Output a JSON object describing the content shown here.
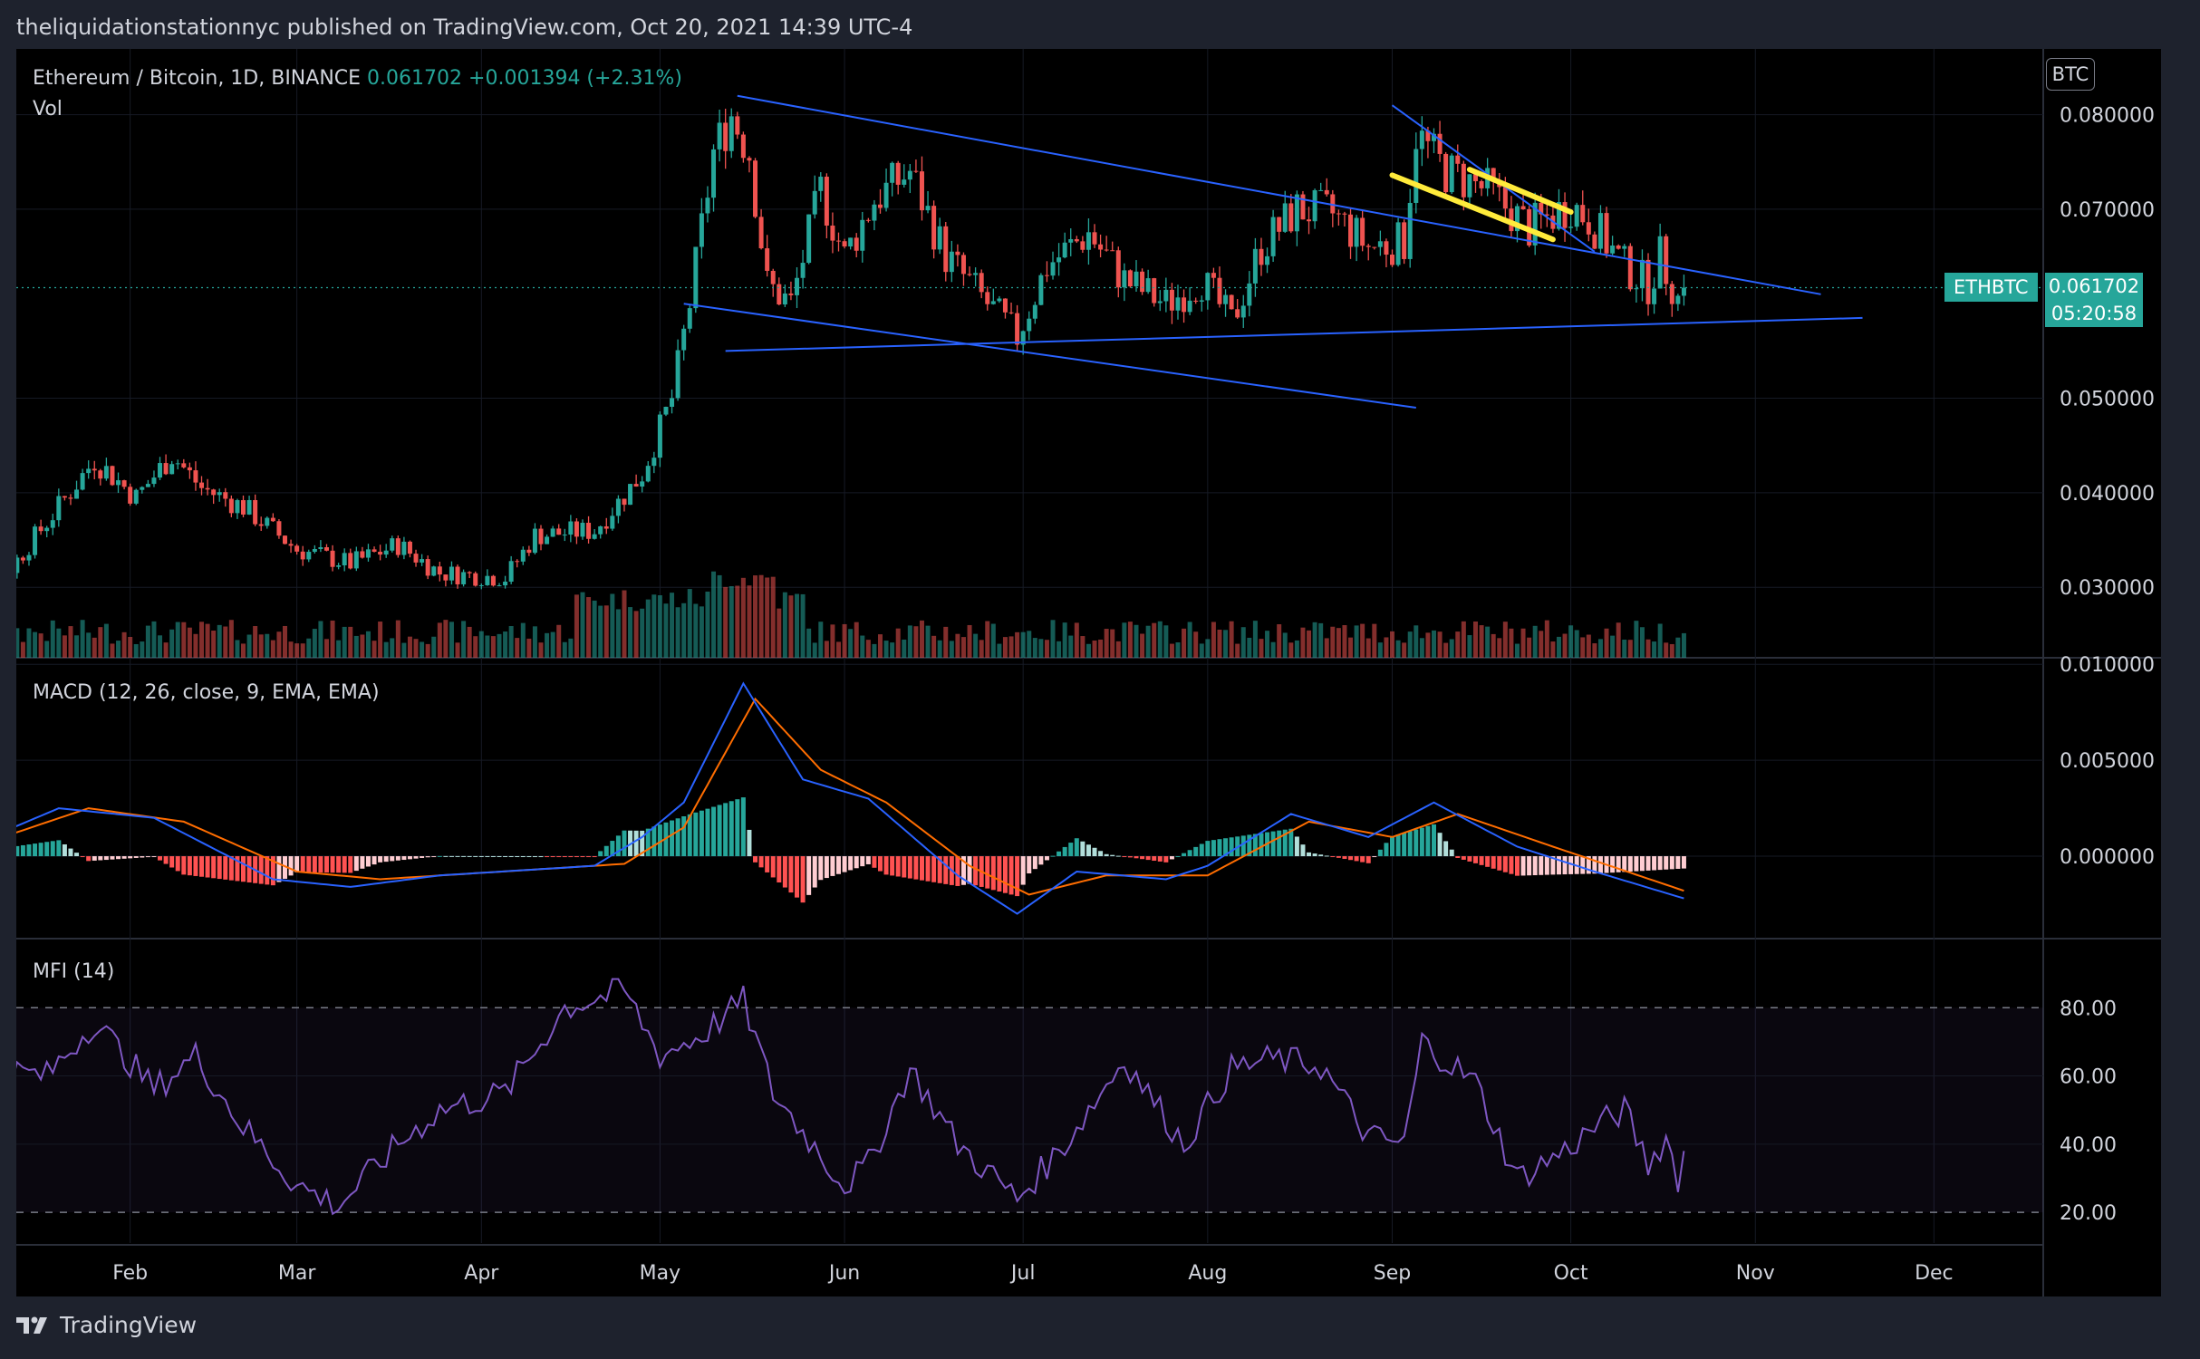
{
  "header": {
    "publisher_line": "theliquidationstationnyc published on TradingView.com, Oct 20, 2021 14:39 UTC-4"
  },
  "legend": {
    "symbol": "Ethereum / Bitcoin, 1D, BINANCE",
    "last": "0.061702",
    "change": "+0.001394 (+2.31%)",
    "vol_label": "Vol"
  },
  "currency_badge": "BTC",
  "ticker_tag": {
    "symbol": "ETHBTC",
    "price": "0.061702",
    "countdown": "05:20:58"
  },
  "macd_label": "MACD (12, 26, close, 9, EMA, EMA)",
  "mfi_label": "MFI (14)",
  "footer": {
    "brand": "TradingView",
    "logo_icon": "tradingview-logo-icon"
  },
  "colors": {
    "up": "#26a69a",
    "down": "#ef5350",
    "macd": "#2962ff",
    "signal": "#ff6d00",
    "mfi": "#7e57c2",
    "trendline": "#2962ff",
    "highlight": "#ffeb3b"
  },
  "chart_data": [
    {
      "type": "candlestick",
      "title": "Ethereum / Bitcoin, 1D, BINANCE",
      "y_ticks": [
        "0.080000",
        "0.070000",
        "0.050000",
        "0.040000",
        "0.030000"
      ],
      "x_ticks": [
        "Feb",
        "Mar",
        "Apr",
        "May",
        "Jun",
        "Jul",
        "Aug",
        "Sep",
        "Oct",
        "Nov",
        "Dec"
      ],
      "ylim": [
        0.0235,
        0.086
      ],
      "last_price": 0.061702,
      "anchors": [
        {
          "date": "2021-01-01",
          "price": 0.0315
        },
        {
          "date": "2021-01-10",
          "price": 0.0305
        },
        {
          "date": "2021-01-20",
          "price": 0.0385
        },
        {
          "date": "2021-01-26",
          "price": 0.0435
        },
        {
          "date": "2021-02-02",
          "price": 0.0395
        },
        {
          "date": "2021-02-08",
          "price": 0.044
        },
        {
          "date": "2021-02-13",
          "price": 0.0405
        },
        {
          "date": "2021-02-20",
          "price": 0.0385
        },
        {
          "date": "2021-03-01",
          "price": 0.034
        },
        {
          "date": "2021-03-10",
          "price": 0.0325
        },
        {
          "date": "2021-03-18",
          "price": 0.0345
        },
        {
          "date": "2021-03-25",
          "price": 0.0315
        },
        {
          "date": "2021-04-05",
          "price": 0.031
        },
        {
          "date": "2021-04-10",
          "price": 0.0355
        },
        {
          "date": "2021-04-20",
          "price": 0.036
        },
        {
          "date": "2021-04-28",
          "price": 0.042
        },
        {
          "date": "2021-05-03",
          "price": 0.05
        },
        {
          "date": "2021-05-06",
          "price": 0.06
        },
        {
          "date": "2021-05-10",
          "price": 0.076
        },
        {
          "date": "2021-05-13",
          "price": 0.08
        },
        {
          "date": "2021-05-16",
          "price": 0.076
        },
        {
          "date": "2021-05-19",
          "price": 0.062
        },
        {
          "date": "2021-05-23",
          "price": 0.06
        },
        {
          "date": "2021-05-28",
          "price": 0.072
        },
        {
          "date": "2021-06-01",
          "price": 0.065
        },
        {
          "date": "2021-06-06",
          "price": 0.071
        },
        {
          "date": "2021-06-12",
          "price": 0.074
        },
        {
          "date": "2021-06-18",
          "price": 0.065
        },
        {
          "date": "2021-06-25",
          "price": 0.06
        },
        {
          "date": "2021-06-30",
          "price": 0.0565
        },
        {
          "date": "2021-07-05",
          "price": 0.064
        },
        {
          "date": "2021-07-12",
          "price": 0.0675
        },
        {
          "date": "2021-07-18",
          "price": 0.0625
        },
        {
          "date": "2021-07-25",
          "price": 0.06
        },
        {
          "date": "2021-07-31",
          "price": 0.0625
        },
        {
          "date": "2021-08-05",
          "price": 0.058
        },
        {
          "date": "2021-08-10",
          "price": 0.066
        },
        {
          "date": "2021-08-16",
          "price": 0.07
        },
        {
          "date": "2021-08-22",
          "price": 0.0695
        },
        {
          "date": "2021-08-28",
          "price": 0.066
        },
        {
          "date": "2021-09-03",
          "price": 0.0665
        },
        {
          "date": "2021-09-05",
          "price": 0.078
        },
        {
          "date": "2021-09-10",
          "price": 0.074
        },
        {
          "date": "2021-09-17",
          "price": 0.072
        },
        {
          "date": "2021-09-24",
          "price": 0.068
        },
        {
          "date": "2021-10-01",
          "price": 0.0705
        },
        {
          "date": "2021-10-04",
          "price": 0.069
        },
        {
          "date": "2021-10-10",
          "price": 0.064
        },
        {
          "date": "2021-10-14",
          "price": 0.062
        },
        {
          "date": "2021-10-16",
          "price": 0.065
        },
        {
          "date": "2021-10-19",
          "price": 0.0605
        },
        {
          "date": "2021-10-20",
          "price": 0.0617
        }
      ],
      "trendlines": [
        {
          "from": {
            "date": "2021-05-14",
            "price": 0.082
          },
          "to": {
            "date": "2021-11-12",
            "price": 0.061
          }
        },
        {
          "from": {
            "date": "2021-05-05",
            "price": 0.06
          },
          "to": {
            "date": "2021-09-05",
            "price": 0.049
          }
        },
        {
          "from": {
            "date": "2021-05-12",
            "price": 0.055
          },
          "to": {
            "date": "2021-11-19",
            "price": 0.0585
          }
        },
        {
          "from": {
            "date": "2021-09-01",
            "price": 0.081
          },
          "to": {
            "date": "2021-10-05",
            "price": 0.0655
          }
        }
      ],
      "highlight_lines": [
        {
          "from": {
            "date": "2021-09-01",
            "price": 0.0736
          },
          "to": {
            "date": "2021-09-28",
            "price": 0.0668
          }
        },
        {
          "from": {
            "date": "2021-09-14",
            "price": 0.0742
          },
          "to": {
            "date": "2021-10-01",
            "price": 0.0697
          }
        }
      ]
    },
    {
      "type": "line",
      "title": "MACD (12, 26, close, 9, EMA, EMA)",
      "y_ticks": [
        "0.010000",
        "0.005000",
        "0.000000"
      ],
      "ylim": [
        -0.0042,
        0.0102
      ],
      "macd_anchors": [
        {
          "date": "2021-01-01",
          "value": 0.0
        },
        {
          "date": "2021-01-20",
          "value": 0.0025
        },
        {
          "date": "2021-02-05",
          "value": 0.002
        },
        {
          "date": "2021-02-25",
          "value": -0.0012
        },
        {
          "date": "2021-03-10",
          "value": -0.0016
        },
        {
          "date": "2021-03-25",
          "value": -0.001
        },
        {
          "date": "2021-04-20",
          "value": -0.0005
        },
        {
          "date": "2021-04-28",
          "value": 0.001
        },
        {
          "date": "2021-05-05",
          "value": 0.0028
        },
        {
          "date": "2021-05-15",
          "value": 0.009
        },
        {
          "date": "2021-05-25",
          "value": 0.004
        },
        {
          "date": "2021-06-05",
          "value": 0.003
        },
        {
          "date": "2021-06-20",
          "value": -0.001
        },
        {
          "date": "2021-06-30",
          "value": -0.003
        },
        {
          "date": "2021-07-10",
          "value": -0.0008
        },
        {
          "date": "2021-07-25",
          "value": -0.0012
        },
        {
          "date": "2021-08-01",
          "value": -0.0005
        },
        {
          "date": "2021-08-15",
          "value": 0.0022
        },
        {
          "date": "2021-08-28",
          "value": 0.001
        },
        {
          "date": "2021-09-08",
          "value": 0.0028
        },
        {
          "date": "2021-09-22",
          "value": 0.0005
        },
        {
          "date": "2021-10-05",
          "value": -0.0008
        },
        {
          "date": "2021-10-20",
          "value": -0.0022
        }
      ],
      "signal_anchors": [
        {
          "date": "2021-01-01",
          "value": 0.0
        },
        {
          "date": "2021-01-25",
          "value": 0.0025
        },
        {
          "date": "2021-02-10",
          "value": 0.0018
        },
        {
          "date": "2021-03-01",
          "value": -0.0008
        },
        {
          "date": "2021-03-15",
          "value": -0.0012
        },
        {
          "date": "2021-04-25",
          "value": -0.0004
        },
        {
          "date": "2021-05-05",
          "value": 0.0015
        },
        {
          "date": "2021-05-17",
          "value": 0.0082
        },
        {
          "date": "2021-05-28",
          "value": 0.0045
        },
        {
          "date": "2021-06-08",
          "value": 0.0028
        },
        {
          "date": "2021-06-22",
          "value": -0.0005
        },
        {
          "date": "2021-07-02",
          "value": -0.002
        },
        {
          "date": "2021-07-15",
          "value": -0.001
        },
        {
          "date": "2021-08-01",
          "value": -0.001
        },
        {
          "date": "2021-08-18",
          "value": 0.0018
        },
        {
          "date": "2021-09-01",
          "value": 0.001
        },
        {
          "date": "2021-09-12",
          "value": 0.0022
        },
        {
          "date": "2021-09-28",
          "value": 0.0005
        },
        {
          "date": "2021-10-20",
          "value": -0.0018
        }
      ]
    },
    {
      "type": "line",
      "title": "MFI (14)",
      "y_ticks": [
        "80.00",
        "60.00",
        "40.00",
        "20.00"
      ],
      "ylim": [
        11,
        100
      ],
      "bands": [
        20,
        80
      ],
      "anchors": [
        {
          "date": "2021-01-01",
          "value": 65
        },
        {
          "date": "2021-01-08",
          "value": 62
        },
        {
          "date": "2021-01-18",
          "value": 60
        },
        {
          "date": "2021-01-26",
          "value": 76
        },
        {
          "date": "2021-02-05",
          "value": 56
        },
        {
          "date": "2021-02-12",
          "value": 66
        },
        {
          "date": "2021-02-20",
          "value": 45
        },
        {
          "date": "2021-03-01",
          "value": 28
        },
        {
          "date": "2021-03-08",
          "value": 22
        },
        {
          "date": "2021-03-18",
          "value": 40
        },
        {
          "date": "2021-03-25",
          "value": 50
        },
        {
          "date": "2021-04-05",
          "value": 55
        },
        {
          "date": "2021-04-15",
          "value": 80
        },
        {
          "date": "2021-04-25",
          "value": 85
        },
        {
          "date": "2021-05-01",
          "value": 66
        },
        {
          "date": "2021-05-08",
          "value": 72
        },
        {
          "date": "2021-05-15",
          "value": 82
        },
        {
          "date": "2021-05-20",
          "value": 55
        },
        {
          "date": "2021-06-01",
          "value": 28
        },
        {
          "date": "2021-06-05",
          "value": 34
        },
        {
          "date": "2021-06-12",
          "value": 62
        },
        {
          "date": "2021-06-20",
          "value": 40
        },
        {
          "date": "2021-06-30",
          "value": 24
        },
        {
          "date": "2021-07-08",
          "value": 40
        },
        {
          "date": "2021-07-18",
          "value": 65
        },
        {
          "date": "2021-07-28",
          "value": 40
        },
        {
          "date": "2021-08-05",
          "value": 62
        },
        {
          "date": "2021-08-12",
          "value": 65
        },
        {
          "date": "2021-08-20",
          "value": 63
        },
        {
          "date": "2021-08-28",
          "value": 42
        },
        {
          "date": "2021-09-03",
          "value": 40
        },
        {
          "date": "2021-09-06",
          "value": 70
        },
        {
          "date": "2021-09-15",
          "value": 58
        },
        {
          "date": "2021-09-22",
          "value": 30
        },
        {
          "date": "2021-09-30",
          "value": 38
        },
        {
          "date": "2021-10-05",
          "value": 45
        },
        {
          "date": "2021-10-10",
          "value": 50
        },
        {
          "date": "2021-10-14",
          "value": 34
        },
        {
          "date": "2021-10-17",
          "value": 42
        },
        {
          "date": "2021-10-19",
          "value": 30
        },
        {
          "date": "2021-10-20",
          "value": 38
        }
      ]
    }
  ]
}
